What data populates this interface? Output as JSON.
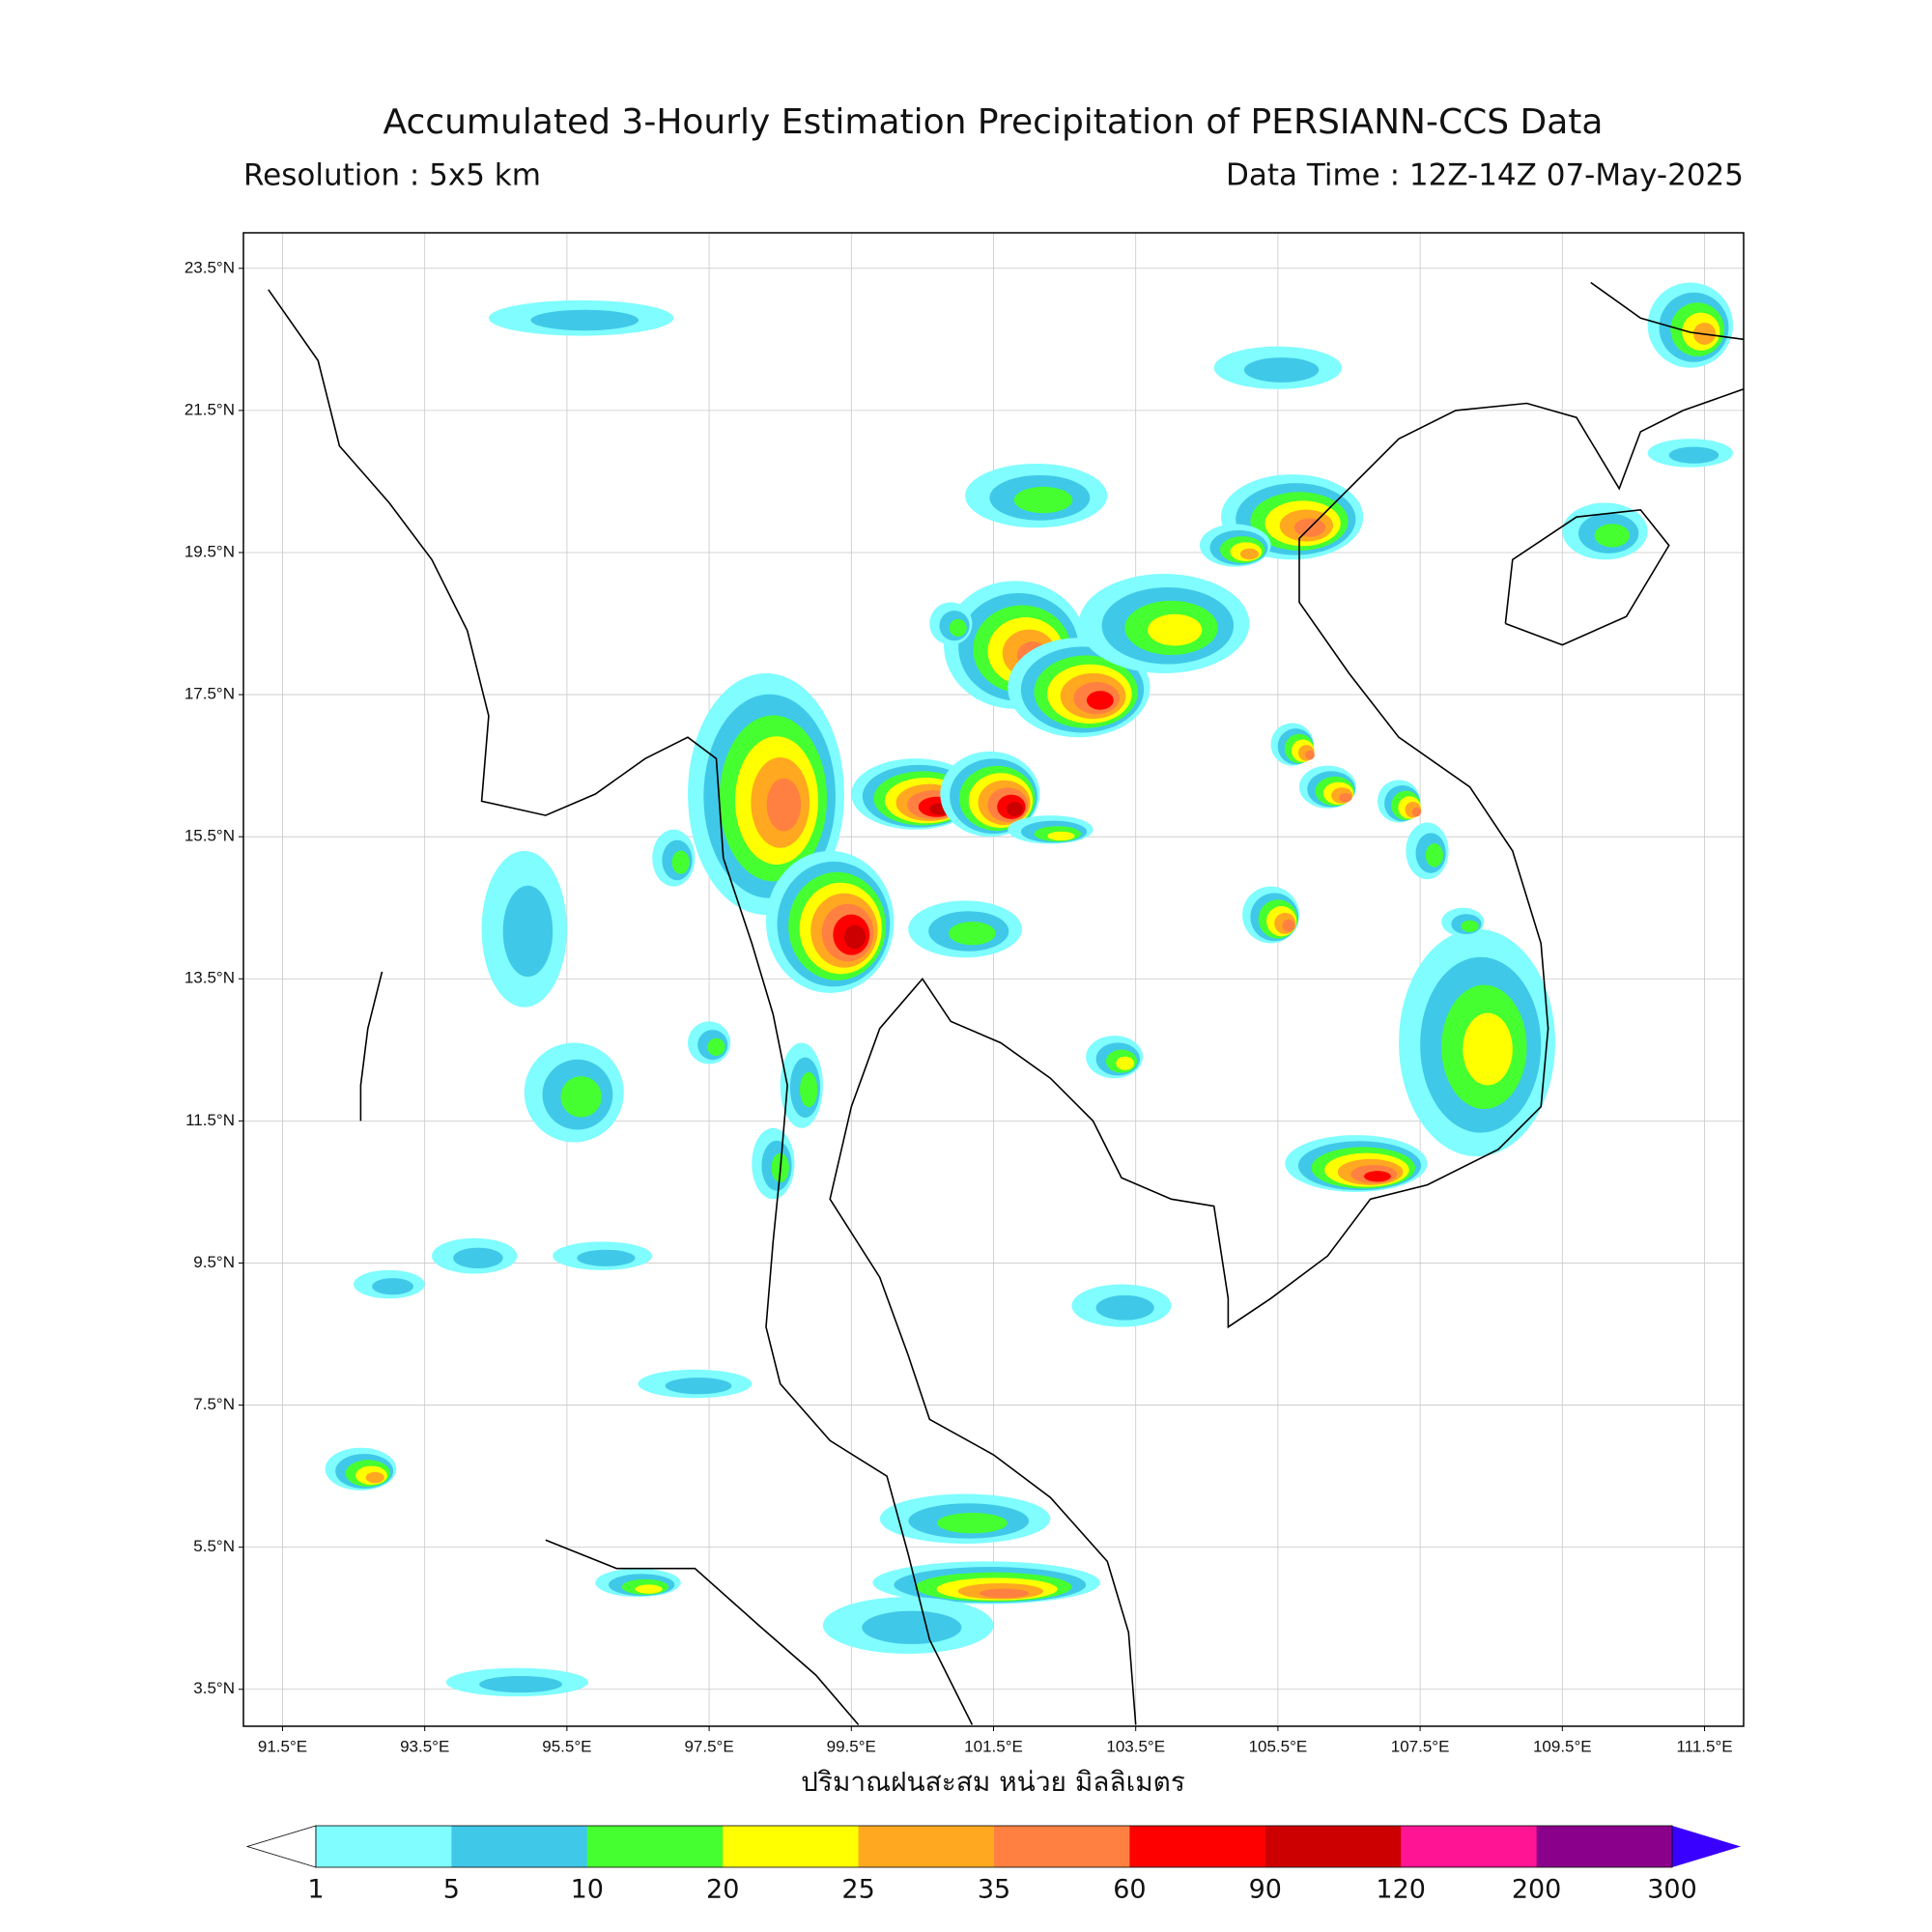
{
  "map": {
    "title": "Accumulated 3-Hourly Estimation Precipitation of PERSIANN-CCS Data",
    "resolution": "Resolution : 5x5 km",
    "data_time": "Data Time : 12Z-14Z 07-May-2025",
    "xlim": [
      90.95,
      112.05
    ],
    "ylim": [
      2.98,
      24.0
    ],
    "xticks": [
      {
        "value": 91.5,
        "label": "91.5°E"
      },
      {
        "value": 93.5,
        "label": "93.5°E"
      },
      {
        "value": 95.5,
        "label": "95.5°E"
      },
      {
        "value": 97.5,
        "label": "97.5°E"
      },
      {
        "value": 99.5,
        "label": "99.5°E"
      },
      {
        "value": 101.5,
        "label": "101.5°E"
      },
      {
        "value": 103.5,
        "label": "103.5°E"
      },
      {
        "value": 105.5,
        "label": "105.5°E"
      },
      {
        "value": 107.5,
        "label": "107.5°E"
      },
      {
        "value": 109.5,
        "label": "109.5°E"
      },
      {
        "value": 111.5,
        "label": "111.5°E"
      }
    ],
    "yticks": [
      {
        "value": 3.5,
        "label": "3.5°N"
      },
      {
        "value": 5.5,
        "label": "5.5°N"
      },
      {
        "value": 7.5,
        "label": "7.5°N"
      },
      {
        "value": 9.5,
        "label": "9.5°N"
      },
      {
        "value": 11.5,
        "label": "11.5°N"
      },
      {
        "value": 13.5,
        "label": "13.5°N"
      },
      {
        "value": 15.5,
        "label": "15.5°N"
      },
      {
        "value": 17.5,
        "label": "17.5°N"
      },
      {
        "value": 19.5,
        "label": "19.5°N"
      },
      {
        "value": 21.5,
        "label": "21.5°N"
      },
      {
        "value": 23.5,
        "label": "23.5°N"
      }
    ],
    "xlabel": "ปริมาณฝนสะสม หน่วย มิลลิเมตร"
  },
  "colorbar": {
    "levels": [
      1,
      5,
      10,
      20,
      25,
      35,
      60,
      90,
      120,
      200,
      300
    ],
    "colors": [
      "#7ffdff",
      "#40c8e8",
      "#45ff30",
      "#ffff00",
      "#ffa820",
      "#ff8040",
      "#ff0000",
      "#cc0000",
      "#ff1493",
      "#8b008b"
    ],
    "under_color": "#ffffff",
    "over_color": "#3a00ff"
  }
}
